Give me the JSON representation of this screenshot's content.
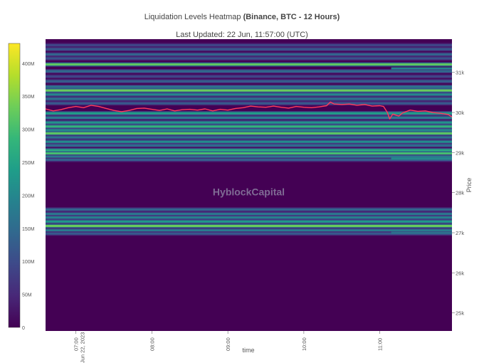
{
  "chart_data": {
    "type": "heatmap",
    "title_prefix": "Liquidation Levels Heatmap ",
    "title_bold": "(Binance, BTC - 12 Hours)",
    "subtitle": "Last Updated: 22 Jun, 11:57:00 (UTC)",
    "xlabel": "time",
    "ylabel": "Price",
    "watermark": "HyblockCapital",
    "x_ticks": [
      {
        "label": "07:00",
        "t": 7.0,
        "sublabel": "Jun 22, 2023"
      },
      {
        "label": "08:00",
        "t": 8.0
      },
      {
        "label": "09:00",
        "t": 9.0
      },
      {
        "label": "10:00",
        "t": 10.0
      },
      {
        "label": "11:00",
        "t": 11.0
      }
    ],
    "y_ticks": [
      {
        "label": "25k",
        "v": 25000
      },
      {
        "label": "26k",
        "v": 26000
      },
      {
        "label": "27k",
        "v": 27000
      },
      {
        "label": "28k",
        "v": 28000
      },
      {
        "label": "29k",
        "v": 29000
      },
      {
        "label": "30k",
        "v": 30000
      },
      {
        "label": "31k",
        "v": 31000
      }
    ],
    "x_range": [
      6.6,
      11.95
    ],
    "y_range": [
      24550,
      31830
    ],
    "colorbar": {
      "ticks": [
        {
          "label": "0",
          "v": 0
        },
        {
          "label": "50M",
          "v": 50
        },
        {
          "label": "100M",
          "v": 100
        },
        {
          "label": "150M",
          "v": 150
        },
        {
          "label": "200M",
          "v": 200
        },
        {
          "label": "250M",
          "v": 250
        },
        {
          "label": "300M",
          "v": 300
        },
        {
          "label": "350M",
          "v": 350
        },
        {
          "label": "400M",
          "v": 400
        }
      ],
      "range": [
        0,
        430
      ],
      "colorscale": [
        "#440154",
        "#482878",
        "#3e4989",
        "#31688e",
        "#26828e",
        "#1f9e89",
        "#35b779",
        "#6ece58",
        "#b5de2b",
        "#fde725"
      ]
    },
    "bands": [
      {
        "y": 31680,
        "v": 90
      },
      {
        "y": 31580,
        "v": 120
      },
      {
        "y": 31450,
        "v": 140
      },
      {
        "y": 31350,
        "v": 110
      },
      {
        "y": 31200,
        "v": 320
      },
      {
        "y": 31030,
        "v": 150
      },
      {
        "y": 30900,
        "v": 90
      },
      {
        "y": 30780,
        "v": 130
      },
      {
        "y": 30640,
        "v": 170
      },
      {
        "y": 30550,
        "v": 330
      },
      {
        "y": 30450,
        "v": 200
      },
      {
        "y": 30340,
        "v": 160
      },
      {
        "y": 30230,
        "v": 120
      },
      {
        "y": 29980,
        "v": 240
      },
      {
        "y": 29870,
        "v": 180
      },
      {
        "y": 29750,
        "v": 220
      },
      {
        "y": 29650,
        "v": 280
      },
      {
        "y": 29560,
        "v": 200
      },
      {
        "y": 29480,
        "v": 320
      },
      {
        "y": 29380,
        "v": 160
      },
      {
        "y": 29270,
        "v": 210
      },
      {
        "y": 29180,
        "v": 150
      },
      {
        "y": 29060,
        "v": 260
      },
      {
        "y": 28980,
        "v": 300
      },
      {
        "y": 28900,
        "v": 170
      },
      {
        "y": 28820,
        "v": 130
      },
      {
        "y": 27580,
        "v": 140
      },
      {
        "y": 27470,
        "v": 170
      },
      {
        "y": 27380,
        "v": 190
      },
      {
        "y": 27280,
        "v": 230
      },
      {
        "y": 27170,
        "v": 330
      },
      {
        "y": 27060,
        "v": 180
      },
      {
        "y": 26980,
        "v": 120
      }
    ],
    "late_bands": [
      {
        "y": 31100,
        "v": 190,
        "t": 11.15
      },
      {
        "y": 28850,
        "v": 200,
        "t": 11.15
      },
      {
        "y": 27000,
        "v": 160,
        "t": 11.15
      }
    ],
    "price_series": [
      [
        6.6,
        30090
      ],
      [
        6.7,
        30040
      ],
      [
        6.8,
        30070
      ],
      [
        6.9,
        30120
      ],
      [
        7.0,
        30150
      ],
      [
        7.1,
        30120
      ],
      [
        7.2,
        30180
      ],
      [
        7.3,
        30150
      ],
      [
        7.4,
        30100
      ],
      [
        7.5,
        30050
      ],
      [
        7.6,
        30020
      ],
      [
        7.7,
        30050
      ],
      [
        7.8,
        30100
      ],
      [
        7.9,
        30110
      ],
      [
        8.0,
        30080
      ],
      [
        8.1,
        30050
      ],
      [
        8.2,
        30090
      ],
      [
        8.3,
        30040
      ],
      [
        8.4,
        30070
      ],
      [
        8.5,
        30080
      ],
      [
        8.6,
        30060
      ],
      [
        8.7,
        30090
      ],
      [
        8.8,
        30040
      ],
      [
        8.9,
        30080
      ],
      [
        9.0,
        30060
      ],
      [
        9.1,
        30100
      ],
      [
        9.2,
        30120
      ],
      [
        9.3,
        30160
      ],
      [
        9.4,
        30140
      ],
      [
        9.5,
        30130
      ],
      [
        9.6,
        30160
      ],
      [
        9.7,
        30130
      ],
      [
        9.8,
        30110
      ],
      [
        9.9,
        30150
      ],
      [
        10.0,
        30130
      ],
      [
        10.1,
        30120
      ],
      [
        10.2,
        30140
      ],
      [
        10.3,
        30170
      ],
      [
        10.35,
        30260
      ],
      [
        10.4,
        30210
      ],
      [
        10.5,
        30200
      ],
      [
        10.6,
        30210
      ],
      [
        10.7,
        30180
      ],
      [
        10.8,
        30200
      ],
      [
        10.9,
        30160
      ],
      [
        11.0,
        30170
      ],
      [
        11.05,
        30150
      ],
      [
        11.1,
        30000
      ],
      [
        11.13,
        29840
      ],
      [
        11.17,
        29960
      ],
      [
        11.25,
        29910
      ],
      [
        11.3,
        29990
      ],
      [
        11.4,
        30060
      ],
      [
        11.5,
        30030
      ],
      [
        11.6,
        30040
      ],
      [
        11.7,
        30000
      ],
      [
        11.8,
        29980
      ],
      [
        11.9,
        29950
      ],
      [
        11.95,
        29890
      ]
    ]
  }
}
